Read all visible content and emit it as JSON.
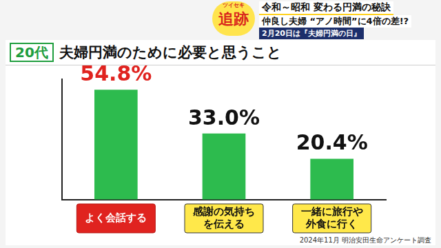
{
  "chart_data": {
    "type": "bar",
    "subtitle": "20代",
    "title": "夫婦円満のために必要と思うこと",
    "categories": [
      "よく会話する",
      "感謝の気持ちを伝える",
      "一緒に旅行や外食に行く"
    ],
    "values": [
      54.8,
      33.0,
      20.4
    ],
    "value_labels": [
      "54.8%",
      "33.0%",
      "20.4%"
    ],
    "data_labels": true,
    "color": "#2dbb4e",
    "ylim": [
      0,
      60
    ],
    "grid": false,
    "annotations": [
      "ツイセキ",
      "追跡",
      "令和～昭和 変わる円満の秘訣",
      "仲良し夫婦 “アノ時間”に4倍の差!?",
      "2月20日は『夫婦円満の日』",
      "2024年11月 明治安田生命アンケート調査"
    ]
  }
}
